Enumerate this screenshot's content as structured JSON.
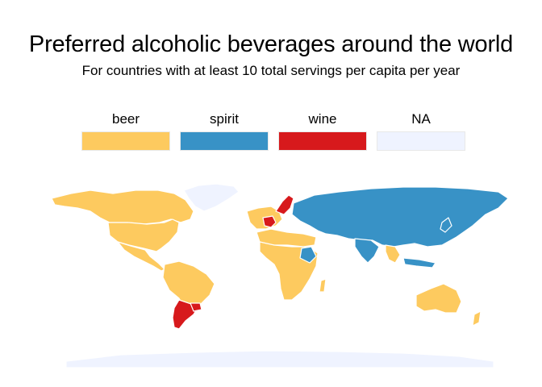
{
  "title": "Preferred alcoholic beverages around the world",
  "subtitle": "For countries with at least 10 total servings per capita per year",
  "legend": {
    "items": [
      {
        "label": "beer",
        "color": "#FDCA5F"
      },
      {
        "label": "spirit",
        "color": "#3892C6"
      },
      {
        "label": "wine",
        "color": "#D7191C"
      },
      {
        "label": "NA",
        "color": "#EFF3FF"
      }
    ]
  },
  "colors": {
    "beer": "#FDCA5F",
    "spirit": "#3892C6",
    "wine": "#D7191C",
    "na": "#EFF3FF"
  }
}
